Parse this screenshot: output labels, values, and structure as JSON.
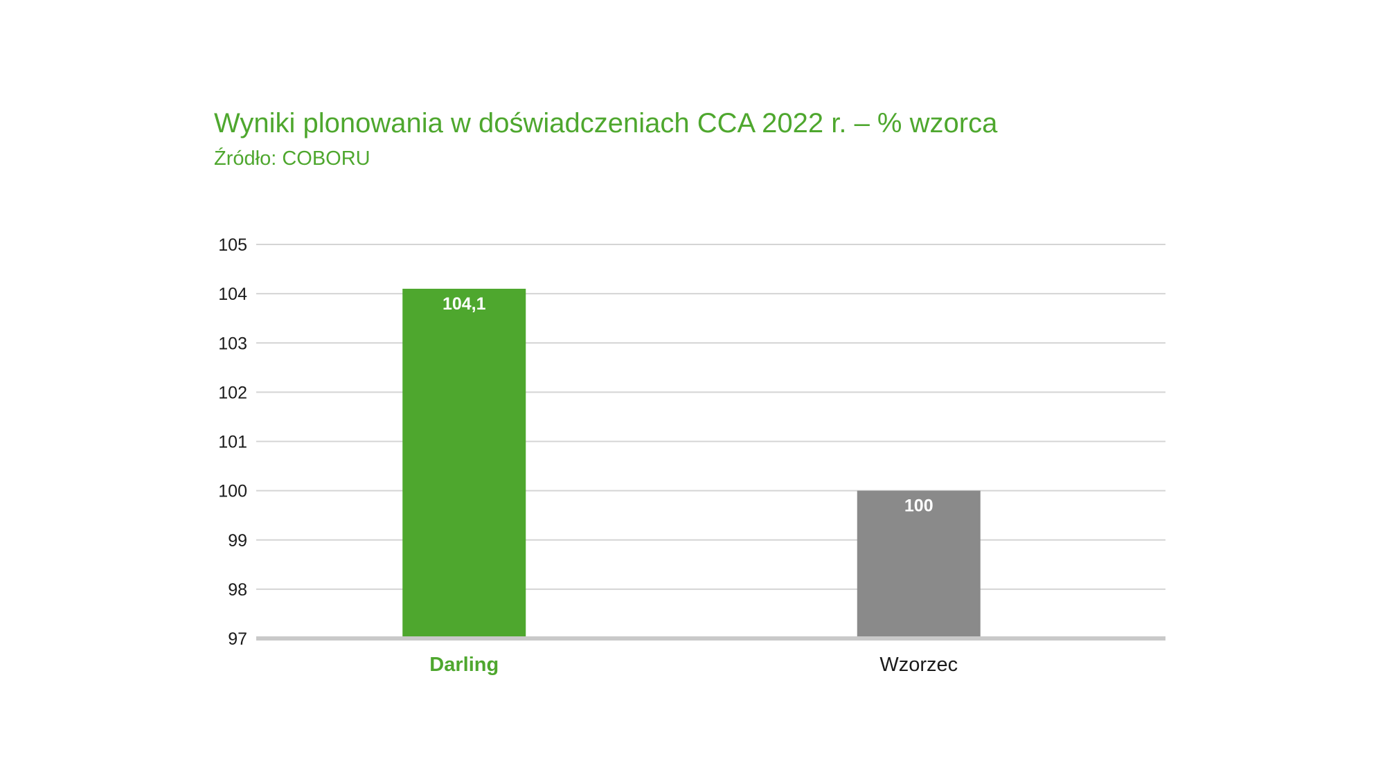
{
  "chart_data": {
    "type": "bar",
    "title": "Wyniki plonowania w doświadczeniach CCA 2022 r. – % wzorca",
    "subtitle": "Źródło: COBORU",
    "categories": [
      "Darling",
      "Wzorzec"
    ],
    "values": [
      104.1,
      100
    ],
    "data_labels": [
      "104,1",
      "100"
    ],
    "bar_colors": [
      "#4ea72e",
      "#8a8a8a"
    ],
    "category_label_colors": [
      "#4ea72e",
      "#1a1a1a"
    ],
    "category_label_bold": [
      true,
      false
    ],
    "ylim": [
      97,
      105
    ],
    "yticks": [
      97,
      98,
      99,
      100,
      101,
      102,
      103,
      104,
      105
    ],
    "ytick_labels": [
      "97",
      "98",
      "99",
      "100",
      "101",
      "102",
      "103",
      "104",
      "105"
    ],
    "grid": true,
    "legend": "none",
    "xlabel": "",
    "ylabel": ""
  }
}
